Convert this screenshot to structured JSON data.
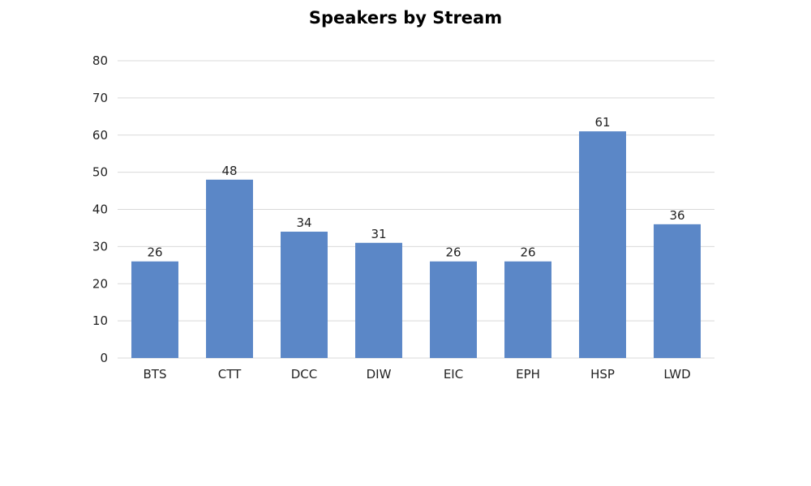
{
  "chart_data": {
    "type": "bar",
    "title": "Speakers by Stream",
    "xlabel": "",
    "ylabel": "",
    "categories": [
      "BTS",
      "CTT",
      "DCC",
      "DIW",
      "EIC",
      "EPH",
      "HSP",
      "LWD"
    ],
    "values": [
      26,
      48,
      34,
      31,
      26,
      26,
      61,
      36
    ],
    "ylim": [
      0,
      80
    ],
    "yticks": [
      0,
      10,
      20,
      30,
      40,
      50,
      60,
      70,
      80
    ],
    "grid": true,
    "legend": "none",
    "bar_color": "#5b87c7",
    "data_labels": true
  }
}
